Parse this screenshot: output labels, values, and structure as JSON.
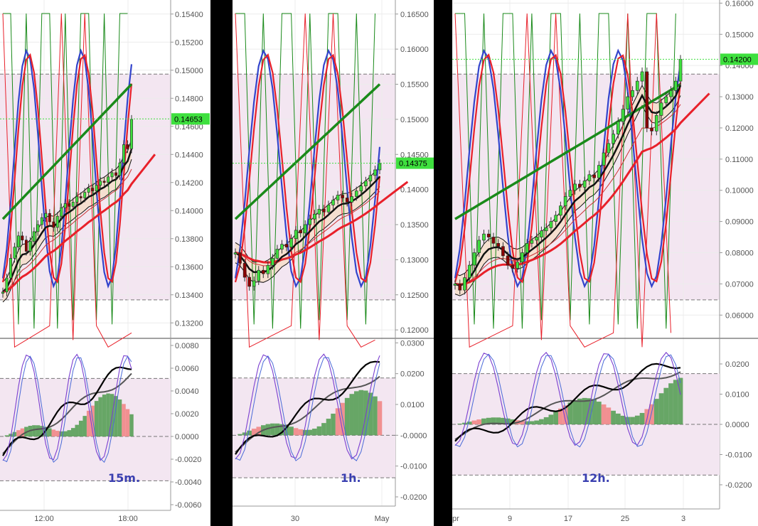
{
  "chart_data": [
    {
      "type": "line",
      "timeframe_label": "15m.",
      "x_tick_labels": [
        "12:00",
        "18:00"
      ],
      "price_axis": {
        "ylim": [
          0.131,
          0.155
        ],
        "ticks": [
          "0.15400",
          "0.15200",
          "0.15000",
          "0.14800",
          "0.14600",
          "0.14400",
          "0.14200",
          "0.14000",
          "0.13800",
          "0.13600",
          "0.13400",
          "0.13200"
        ]
      },
      "last_price": "0.14653",
      "oscillator_axis": {
        "ylim": [
          -0.0065,
          0.0085
        ],
        "ticks": [
          "0.0080",
          "0.0060",
          "0.0040",
          "0.0020",
          "0.0000",
          "-0.0020",
          "-0.0040",
          "-0.0060"
        ]
      },
      "candles": [
        0.1342,
        0.1352,
        0.1366,
        0.1374,
        0.1382,
        0.1379,
        0.1371,
        0.1378,
        0.1385,
        0.139,
        0.1395,
        0.1398,
        0.1392,
        0.1388,
        0.1396,
        0.1402,
        0.1405,
        0.1403,
        0.1406,
        0.141,
        0.1409,
        0.1413,
        0.1416,
        0.1414,
        0.1418,
        0.1421,
        0.142,
        0.1424,
        0.1427,
        0.1425,
        0.1434,
        0.1447,
        0.1444,
        0.1465
      ],
      "colors": {
        "up": "#3ee03e",
        "down": "#8b0000",
        "ema_fast": "#e8202a",
        "ema_slow": "#1a8a1a",
        "stoch_k": "#3344cc",
        "stoch_d": "#e8202a",
        "last_price_bg": "#3ee03e"
      }
    },
    {
      "type": "line",
      "timeframe_label": "1h.",
      "x_tick_labels": [
        "30",
        "May"
      ],
      "price_axis": {
        "ylim": [
          0.119,
          0.167
        ],
        "ticks": [
          "0.16500",
          "0.16000",
          "0.15500",
          "0.15000",
          "0.14500",
          "0.14000",
          "0.13500",
          "0.13000",
          "0.12500",
          "0.12000"
        ]
      },
      "last_price": "0.14375",
      "oscillator_axis": {
        "ylim": [
          -0.023,
          0.031
        ],
        "ticks": [
          "0.0300",
          "0.0200",
          "0.0100",
          "-0.0000",
          "-0.0100",
          "-0.0200"
        ]
      },
      "candles": [
        0.131,
        0.1295,
        0.1275,
        0.1262,
        0.127,
        0.1285,
        0.128,
        0.1292,
        0.1302,
        0.1315,
        0.1322,
        0.1318,
        0.133,
        0.1342,
        0.1338,
        0.135,
        0.1358,
        0.1365,
        0.1372,
        0.1368,
        0.1378,
        0.1385,
        0.1392,
        0.1388,
        0.1382,
        0.139,
        0.1398,
        0.1405,
        0.1412,
        0.142,
        0.1428,
        0.1437
      ],
      "colors": {
        "up": "#3ee03e",
        "down": "#8b0000",
        "ema_fast": "#e8202a",
        "ema_slow": "#1a8a1a",
        "stoch_k": "#3344cc",
        "stoch_d": "#e8202a",
        "last_price_bg": "#3ee03e"
      }
    },
    {
      "type": "line",
      "timeframe_label": "12h.",
      "x_tick_labels": [
        "pr",
        "9",
        "17",
        "25",
        "3"
      ],
      "price_axis": {
        "ylim": [
          0.053,
          0.161
        ],
        "ticks": [
          "0.16000",
          "0.15000",
          "0.14000",
          "0.13000",
          "0.12000",
          "0.11000",
          "0.10000",
          "0.09000",
          "0.08000",
          "0.07000",
          "0.06000"
        ]
      },
      "last_price": "0.14200",
      "oscillator_axis": {
        "ylim": [
          -0.028,
          0.028
        ],
        "ticks": [
          "0.0200",
          "0.0100",
          "0.0000",
          "-0.0100",
          "-0.0200"
        ]
      },
      "candles": [
        0.07,
        0.068,
        0.072,
        0.076,
        0.08,
        0.084,
        0.086,
        0.085,
        0.083,
        0.082,
        0.079,
        0.076,
        0.075,
        0.077,
        0.08,
        0.083,
        0.084,
        0.085,
        0.087,
        0.088,
        0.09,
        0.092,
        0.095,
        0.098,
        0.1,
        0.102,
        0.101,
        0.103,
        0.105,
        0.104,
        0.108,
        0.112,
        0.115,
        0.118,
        0.122,
        0.126,
        0.13,
        0.132,
        0.135,
        0.138,
        0.12,
        0.119,
        0.124,
        0.128,
        0.13,
        0.132,
        0.135,
        0.142
      ],
      "colors": {
        "up": "#3ee03e",
        "down": "#8b0000",
        "ema_fast": "#e8202a",
        "ema_slow": "#1a8a1a",
        "stoch_k": "#3344cc",
        "stoch_d": "#e8202a",
        "last_price_bg": "#3ee03e"
      }
    }
  ]
}
